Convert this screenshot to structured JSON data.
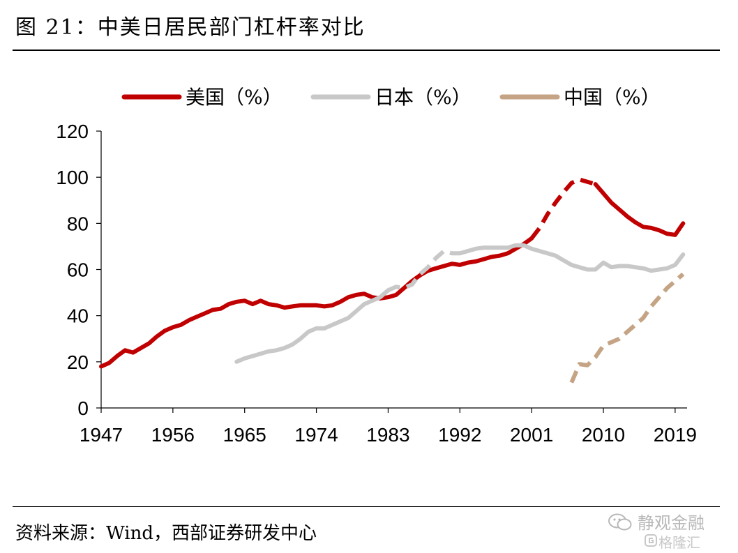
{
  "header": {
    "title": "图 21：中美日居民部门杠杆率对比"
  },
  "footer": {
    "source": "资料来源：Wind，西部证券研发中心"
  },
  "watermark": {
    "line1": "静观金融",
    "line2": "格隆汇",
    "icon1": "wechat-icon",
    "icon2": "gelonghui-logo-icon"
  },
  "chart_data": {
    "type": "line",
    "title": "",
    "xlabel": "",
    "ylabel": "",
    "xlim": [
      1947,
      2020.5
    ],
    "ylim": [
      0,
      120
    ],
    "yticks": [
      0,
      20,
      40,
      60,
      80,
      100,
      120
    ],
    "xticks": [
      1947,
      1956,
      1965,
      1974,
      1983,
      1992,
      2001,
      2010,
      2019
    ],
    "grid": false,
    "legend_position": "top",
    "series": [
      {
        "name": "美国（%）",
        "color": "#c00000",
        "points": [
          [
            1947,
            18
          ],
          [
            1948,
            19.5
          ],
          [
            1949,
            22.5
          ],
          [
            1950,
            25
          ],
          [
            1951,
            24
          ],
          [
            1952,
            26
          ],
          [
            1953,
            28
          ],
          [
            1954,
            31
          ],
          [
            1955,
            33.5
          ],
          [
            1956,
            35
          ],
          [
            1957,
            36
          ],
          [
            1958,
            38
          ],
          [
            1959,
            39.5
          ],
          [
            1960,
            41
          ],
          [
            1961,
            42.5
          ],
          [
            1962,
            43
          ],
          [
            1963,
            45
          ],
          [
            1964,
            46
          ],
          [
            1965,
            46.5
          ],
          [
            1966,
            45
          ],
          [
            1967,
            46.5
          ],
          [
            1968,
            45
          ],
          [
            1969,
            44.5
          ],
          [
            1970,
            43.5
          ],
          [
            1971,
            44
          ],
          [
            1972,
            44.5
          ],
          [
            1973,
            44.5
          ],
          [
            1974,
            44.5
          ],
          [
            1975,
            44
          ],
          [
            1976,
            44.5
          ],
          [
            1977,
            46
          ],
          [
            1978,
            48
          ],
          [
            1979,
            49
          ],
          [
            1980,
            49.5
          ],
          [
            1981,
            48
          ],
          [
            1982,
            47.5
          ],
          [
            1983,
            48
          ],
          [
            1984,
            49
          ],
          [
            1985,
            52
          ],
          [
            1986,
            55
          ],
          [
            1987,
            57.5
          ],
          [
            1988,
            59.5
          ],
          [
            1989,
            60.5
          ],
          [
            1990,
            61.5
          ],
          [
            1991,
            62.5
          ],
          [
            1992,
            62
          ],
          [
            1993,
            63
          ],
          [
            1994,
            63.5
          ],
          [
            1995,
            64.5
          ],
          [
            1996,
            65.5
          ],
          [
            1997,
            66
          ],
          [
            1998,
            67
          ],
          [
            1999,
            69
          ],
          [
            2000,
            71
          ],
          [
            2001,
            73.5
          ],
          [
            2002,
            78
          ],
          [
            2003,
            84
          ],
          [
            2004,
            89
          ],
          [
            2005,
            93.5
          ],
          [
            2006,
            97.5
          ],
          [
            2007,
            99
          ],
          [
            2008,
            98
          ],
          [
            2009,
            97
          ],
          [
            2010,
            93
          ],
          [
            2011,
            89
          ],
          [
            2012,
            86
          ],
          [
            2013,
            83
          ],
          [
            2014,
            80.5
          ],
          [
            2015,
            78.5
          ],
          [
            2016,
            78
          ],
          [
            2017,
            77
          ],
          [
            2018,
            75.5
          ],
          [
            2019,
            75
          ],
          [
            2020,
            80
          ]
        ],
        "dashed_ranges": [
          [
            2001,
            2009
          ]
        ]
      },
      {
        "name": "日本（%）",
        "color": "#c8c8c8",
        "points": [
          [
            1964,
            20
          ],
          [
            1965,
            21.5
          ],
          [
            1966,
            22.5
          ],
          [
            1967,
            23.5
          ],
          [
            1968,
            24.5
          ],
          [
            1969,
            25
          ],
          [
            1970,
            26
          ],
          [
            1971,
            27.5
          ],
          [
            1972,
            30
          ],
          [
            1973,
            33
          ],
          [
            1974,
            34.5
          ],
          [
            1975,
            34.5
          ],
          [
            1976,
            36
          ],
          [
            1977,
            37.5
          ],
          [
            1978,
            39
          ],
          [
            1979,
            42
          ],
          [
            1980,
            45
          ],
          [
            1981,
            46.5
          ],
          [
            1982,
            48
          ],
          [
            1983,
            51
          ],
          [
            1984,
            52.5
          ],
          [
            1985,
            52
          ],
          [
            1986,
            53.5
          ],
          [
            1987,
            58
          ],
          [
            1988,
            61
          ],
          [
            1989,
            65
          ],
          [
            1990,
            68
          ],
          [
            1991,
            67
          ],
          [
            1992,
            67
          ],
          [
            1993,
            68
          ],
          [
            1994,
            69
          ],
          [
            1995,
            69.5
          ],
          [
            1996,
            69.5
          ],
          [
            1997,
            69.5
          ],
          [
            1998,
            69.5
          ],
          [
            1999,
            70.5
          ],
          [
            2000,
            70.5
          ],
          [
            2001,
            69
          ],
          [
            2002,
            68
          ],
          [
            2003,
            67
          ],
          [
            2004,
            66
          ],
          [
            2005,
            64
          ],
          [
            2006,
            62
          ],
          [
            2007,
            61
          ],
          [
            2008,
            60
          ],
          [
            2009,
            60
          ],
          [
            2010,
            63
          ],
          [
            2011,
            61
          ],
          [
            2012,
            61.5
          ],
          [
            2013,
            61.5
          ],
          [
            2014,
            61
          ],
          [
            2015,
            60.5
          ],
          [
            2016,
            59.5
          ],
          [
            2017,
            60
          ],
          [
            2018,
            60.5
          ],
          [
            2019,
            62
          ],
          [
            2020,
            66.5
          ]
        ],
        "dashed_ranges": [
          [
            1983,
            1991
          ]
        ]
      },
      {
        "name": "中国（%）",
        "color": "#c4a484",
        "points": [
          [
            2006,
            11
          ],
          [
            2007,
            19
          ],
          [
            2008,
            18.5
          ],
          [
            2009,
            22
          ],
          [
            2010,
            27
          ],
          [
            2011,
            28.5
          ],
          [
            2012,
            30
          ],
          [
            2013,
            33
          ],
          [
            2014,
            36
          ],
          [
            2015,
            39
          ],
          [
            2016,
            44
          ],
          [
            2017,
            48
          ],
          [
            2018,
            52
          ],
          [
            2019,
            55
          ],
          [
            2020,
            58
          ]
        ],
        "dashed_ranges": [
          [
            2006,
            2020
          ]
        ]
      }
    ]
  }
}
